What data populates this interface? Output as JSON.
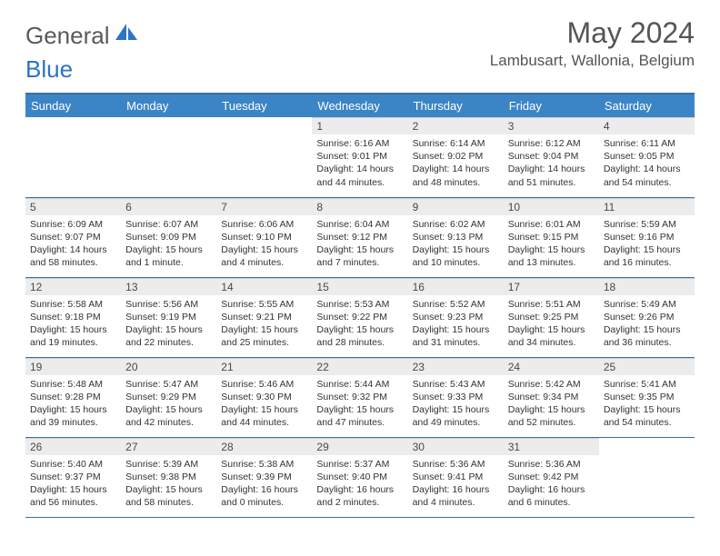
{
  "brand": {
    "part1": "General",
    "part2": "Blue"
  },
  "title": "May 2024",
  "location": "Lambusart, Wallonia, Belgium",
  "colors": {
    "header_bg": "#3b85c6",
    "header_border": "#3b6fa0",
    "daynum_bg": "#ececec",
    "text": "#333333",
    "title_color": "#555555",
    "logo_gray": "#5a5a5a",
    "logo_blue": "#2d74c4"
  },
  "weekdays": [
    "Sunday",
    "Monday",
    "Tuesday",
    "Wednesday",
    "Thursday",
    "Friday",
    "Saturday"
  ],
  "weeks": [
    [
      null,
      null,
      null,
      {
        "n": "1",
        "sr": "6:16 AM",
        "ss": "9:01 PM",
        "dl": "14 hours and 44 minutes."
      },
      {
        "n": "2",
        "sr": "6:14 AM",
        "ss": "9:02 PM",
        "dl": "14 hours and 48 minutes."
      },
      {
        "n": "3",
        "sr": "6:12 AM",
        "ss": "9:04 PM",
        "dl": "14 hours and 51 minutes."
      },
      {
        "n": "4",
        "sr": "6:11 AM",
        "ss": "9:05 PM",
        "dl": "14 hours and 54 minutes."
      }
    ],
    [
      {
        "n": "5",
        "sr": "6:09 AM",
        "ss": "9:07 PM",
        "dl": "14 hours and 58 minutes."
      },
      {
        "n": "6",
        "sr": "6:07 AM",
        "ss": "9:09 PM",
        "dl": "15 hours and 1 minute."
      },
      {
        "n": "7",
        "sr": "6:06 AM",
        "ss": "9:10 PM",
        "dl": "15 hours and 4 minutes."
      },
      {
        "n": "8",
        "sr": "6:04 AM",
        "ss": "9:12 PM",
        "dl": "15 hours and 7 minutes."
      },
      {
        "n": "9",
        "sr": "6:02 AM",
        "ss": "9:13 PM",
        "dl": "15 hours and 10 minutes."
      },
      {
        "n": "10",
        "sr": "6:01 AM",
        "ss": "9:15 PM",
        "dl": "15 hours and 13 minutes."
      },
      {
        "n": "11",
        "sr": "5:59 AM",
        "ss": "9:16 PM",
        "dl": "15 hours and 16 minutes."
      }
    ],
    [
      {
        "n": "12",
        "sr": "5:58 AM",
        "ss": "9:18 PM",
        "dl": "15 hours and 19 minutes."
      },
      {
        "n": "13",
        "sr": "5:56 AM",
        "ss": "9:19 PM",
        "dl": "15 hours and 22 minutes."
      },
      {
        "n": "14",
        "sr": "5:55 AM",
        "ss": "9:21 PM",
        "dl": "15 hours and 25 minutes."
      },
      {
        "n": "15",
        "sr": "5:53 AM",
        "ss": "9:22 PM",
        "dl": "15 hours and 28 minutes."
      },
      {
        "n": "16",
        "sr": "5:52 AM",
        "ss": "9:23 PM",
        "dl": "15 hours and 31 minutes."
      },
      {
        "n": "17",
        "sr": "5:51 AM",
        "ss": "9:25 PM",
        "dl": "15 hours and 34 minutes."
      },
      {
        "n": "18",
        "sr": "5:49 AM",
        "ss": "9:26 PM",
        "dl": "15 hours and 36 minutes."
      }
    ],
    [
      {
        "n": "19",
        "sr": "5:48 AM",
        "ss": "9:28 PM",
        "dl": "15 hours and 39 minutes."
      },
      {
        "n": "20",
        "sr": "5:47 AM",
        "ss": "9:29 PM",
        "dl": "15 hours and 42 minutes."
      },
      {
        "n": "21",
        "sr": "5:46 AM",
        "ss": "9:30 PM",
        "dl": "15 hours and 44 minutes."
      },
      {
        "n": "22",
        "sr": "5:44 AM",
        "ss": "9:32 PM",
        "dl": "15 hours and 47 minutes."
      },
      {
        "n": "23",
        "sr": "5:43 AM",
        "ss": "9:33 PM",
        "dl": "15 hours and 49 minutes."
      },
      {
        "n": "24",
        "sr": "5:42 AM",
        "ss": "9:34 PM",
        "dl": "15 hours and 52 minutes."
      },
      {
        "n": "25",
        "sr": "5:41 AM",
        "ss": "9:35 PM",
        "dl": "15 hours and 54 minutes."
      }
    ],
    [
      {
        "n": "26",
        "sr": "5:40 AM",
        "ss": "9:37 PM",
        "dl": "15 hours and 56 minutes."
      },
      {
        "n": "27",
        "sr": "5:39 AM",
        "ss": "9:38 PM",
        "dl": "15 hours and 58 minutes."
      },
      {
        "n": "28",
        "sr": "5:38 AM",
        "ss": "9:39 PM",
        "dl": "16 hours and 0 minutes."
      },
      {
        "n": "29",
        "sr": "5:37 AM",
        "ss": "9:40 PM",
        "dl": "16 hours and 2 minutes."
      },
      {
        "n": "30",
        "sr": "5:36 AM",
        "ss": "9:41 PM",
        "dl": "16 hours and 4 minutes."
      },
      {
        "n": "31",
        "sr": "5:36 AM",
        "ss": "9:42 PM",
        "dl": "16 hours and 6 minutes."
      },
      null
    ]
  ],
  "labels": {
    "sunrise": "Sunrise:",
    "sunset": "Sunset:",
    "daylight": "Daylight:"
  }
}
